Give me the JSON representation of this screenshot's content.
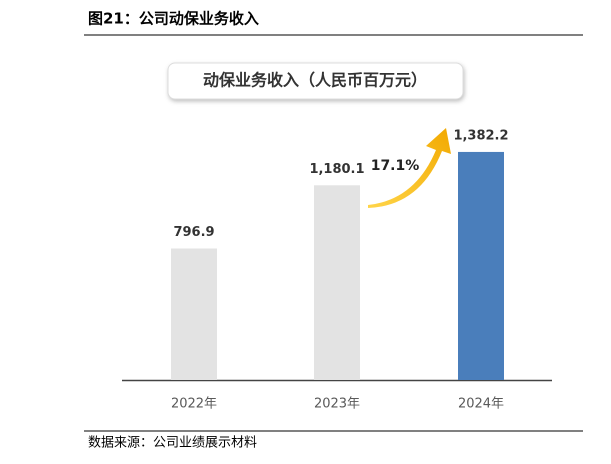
{
  "header": {
    "title": "图21：公司动保业务收入"
  },
  "chart_data": {
    "type": "bar",
    "title": "动保业务收入（人民币百万元）",
    "categories": [
      "2022年",
      "2023年",
      "2024年"
    ],
    "values": [
      796.9,
      1180.1,
      1382.2
    ],
    "value_labels": [
      "796.9",
      "1,180.1",
      "1,382.2"
    ],
    "colors": [
      "#e3e3e3",
      "#e3e3e3",
      "#4a7ebb"
    ],
    "ylim": [
      0,
      1400
    ],
    "annotation": "17.1%"
  },
  "footer": {
    "source": "数据来源：公司业绩展示材料"
  }
}
